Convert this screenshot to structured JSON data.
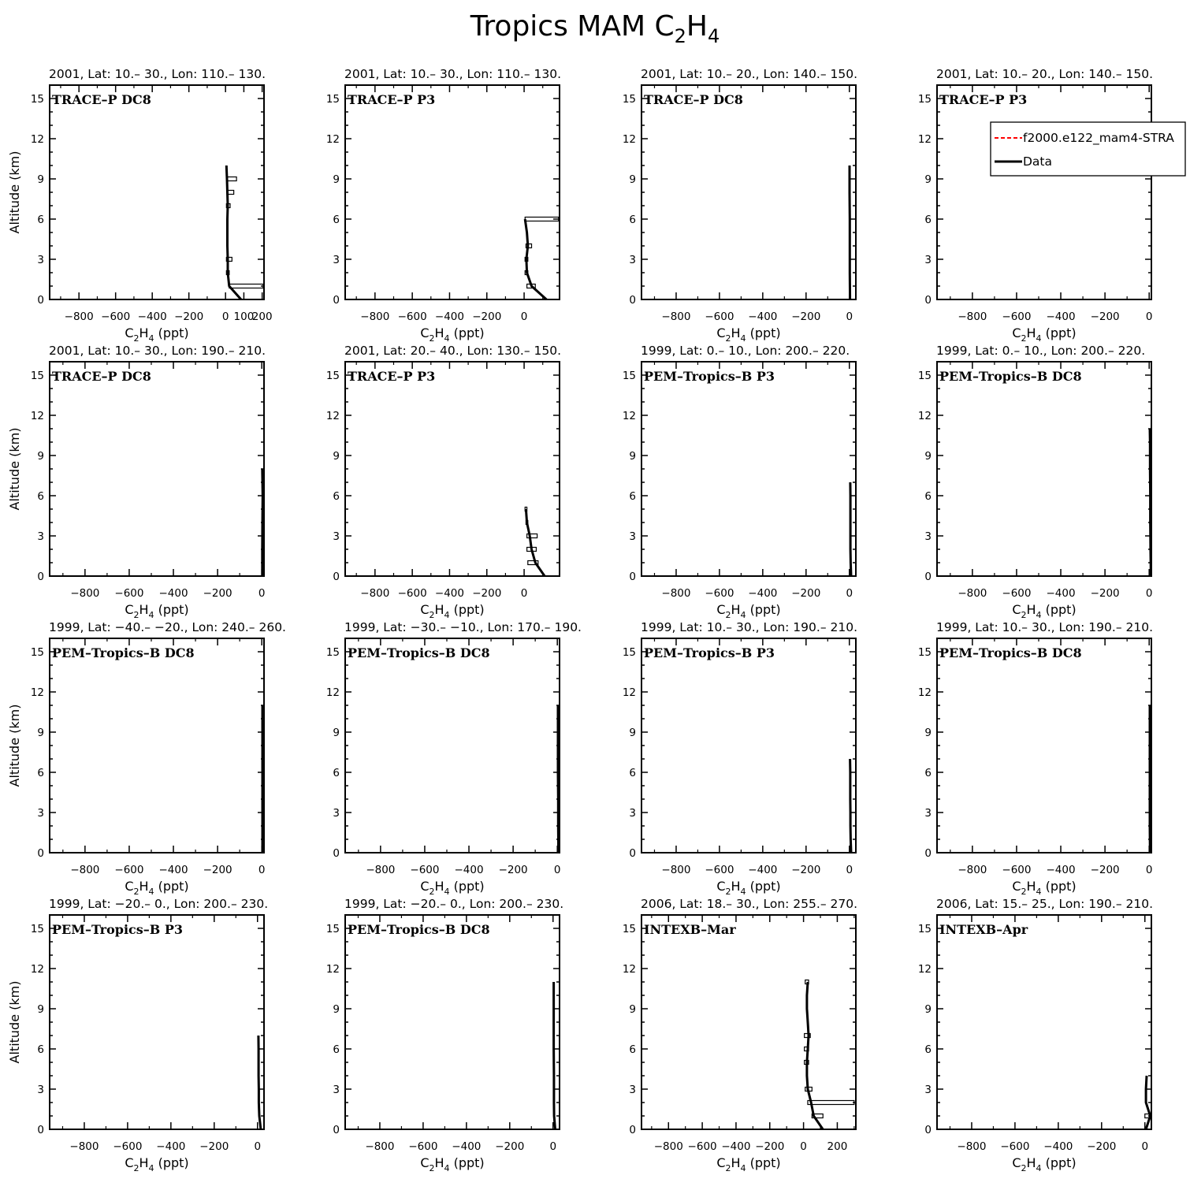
{
  "figure": {
    "title": "Tropics MAM C",
    "title_sub": "2",
    "title_mid": "H",
    "title_sub2": "4"
  },
  "axis_labels": {
    "ylabel": "Altitude (km)",
    "xlabel_prefix": "C",
    "xlabel_sub1": "2",
    "xlabel_mid": "H",
    "xlabel_sub2": "4",
    "xlabel_suffix": " (ppt)"
  },
  "legend": {
    "model_label": "f2000.e122_mam4-STRA",
    "model_color": "#ff0000",
    "data_label": "Data",
    "data_color": "#000000"
  },
  "chart_data": [
    {
      "type": "line",
      "header": "2001, Lat: 10.– 30., Lon: 110.– 130.",
      "campaign": "TRACE–P DC8",
      "xlim": [
        -960,
        210
      ],
      "ylim": [
        0,
        16
      ],
      "xticks": [
        -800,
        -600,
        -400,
        -200,
        0,
        100,
        200
      ],
      "xtick_labels": [
        "−800",
        "−600",
        "−400",
        "−200",
        "0",
        "100",
        "200"
      ],
      "profile": {
        "alt": [
          0,
          1,
          2,
          3,
          4,
          5,
          6,
          7,
          8,
          9,
          10
        ],
        "val": [
          85,
          20,
          12,
          12,
          10,
          10,
          10,
          12,
          10,
          8,
          5
        ]
      },
      "bars": [
        {
          "alt": 1,
          "lo": 20,
          "hi": 205
        },
        {
          "alt": 2,
          "lo": 5,
          "hi": 20
        },
        {
          "alt": 3,
          "lo": 5,
          "hi": 35
        },
        {
          "alt": 7,
          "lo": 5,
          "hi": 25
        },
        {
          "alt": 8,
          "lo": 10,
          "hi": 45
        },
        {
          "alt": 9,
          "lo": 10,
          "hi": 60
        }
      ]
    },
    {
      "type": "line",
      "header": "2001, Lat: 10.– 30., Lon: 110.– 130.",
      "campaign": "TRACE–P P3",
      "xlim": [
        -960,
        190
      ],
      "ylim": [
        0,
        16
      ],
      "xticks": [
        -800,
        -600,
        -400,
        -200,
        0
      ],
      "xtick_labels": [
        "−800",
        "−600",
        "−400",
        "−200",
        "0"
      ],
      "profile": {
        "alt": [
          0,
          1,
          2,
          3,
          4,
          5,
          6
        ],
        "val": [
          120,
          40,
          15,
          12,
          20,
          15,
          5
        ]
      },
      "bars": [
        {
          "alt": 1,
          "lo": 15,
          "hi": 60
        },
        {
          "alt": 2,
          "lo": 5,
          "hi": 20
        },
        {
          "alt": 3,
          "lo": 5,
          "hi": 20
        },
        {
          "alt": 4,
          "lo": 10,
          "hi": 40
        },
        {
          "alt": 6,
          "lo": 5,
          "hi": 185
        }
      ]
    },
    {
      "type": "line",
      "header": "2001, Lat: 10.– 20., Lon: 140.– 150.",
      "campaign": "TRACE–P DC8",
      "xlim": [
        -960,
        30
      ],
      "ylim": [
        0,
        16
      ],
      "xticks": [
        -800,
        -600,
        -400,
        -200,
        0
      ],
      "xtick_labels": [
        "−800",
        "−600",
        "−400",
        "−200",
        "0"
      ],
      "profile": {
        "alt": [
          0,
          2,
          4,
          6,
          8,
          10
        ],
        "val": [
          3,
          2,
          2,
          2,
          1,
          1
        ]
      },
      "bars": []
    },
    {
      "type": "line",
      "header": "2001, Lat: 10.– 20., Lon: 140.– 150.",
      "campaign": "TRACE–P P3",
      "xlim": [
        -960,
        10
      ],
      "ylim": [
        0,
        16
      ],
      "xticks": [
        -800,
        -600,
        -400,
        -200,
        0
      ],
      "xtick_labels": [
        "−800",
        "−600",
        "−400",
        "−200",
        "0"
      ],
      "profile": {
        "alt": [],
        "val": []
      },
      "bars": []
    },
    {
      "type": "line",
      "header": "2001, Lat: 10.– 30., Lon: 190.– 210.",
      "campaign": "TRACE–P DC8",
      "xlim": [
        -960,
        10
      ],
      "ylim": [
        0,
        16
      ],
      "xticks": [
        -800,
        -600,
        -400,
        -200,
        0
      ],
      "xtick_labels": [
        "−800",
        "−600",
        "−400",
        "−200",
        "0"
      ],
      "profile": {
        "alt": [
          0,
          2,
          4,
          6,
          8
        ],
        "val": [
          2,
          2,
          3,
          4,
          2
        ]
      },
      "bars": []
    },
    {
      "type": "line",
      "header": "2001, Lat: 20.– 40., Lon: 130.– 150.",
      "campaign": "TRACE–P P3",
      "xlim": [
        -960,
        190
      ],
      "ylim": [
        0,
        16
      ],
      "xticks": [
        -800,
        -600,
        -400,
        -200,
        0
      ],
      "xtick_labels": [
        "−800",
        "−600",
        "−400",
        "−200",
        "0"
      ],
      "profile": {
        "alt": [
          0,
          1,
          2,
          3,
          4,
          5
        ],
        "val": [
          110,
          60,
          40,
          30,
          15,
          10
        ]
      },
      "bars": [
        {
          "alt": 1,
          "lo": 20,
          "hi": 75
        },
        {
          "alt": 2,
          "lo": 15,
          "hi": 65
        },
        {
          "alt": 3,
          "lo": 15,
          "hi": 70
        },
        {
          "alt": 4,
          "lo": 10,
          "hi": 20
        },
        {
          "alt": 5,
          "lo": 5,
          "hi": 15
        }
      ]
    },
    {
      "type": "line",
      "header": "1999, Lat: 0.– 10., Lon: 200.– 220.",
      "campaign": "PEM–Tropics–B P3",
      "xlim": [
        -960,
        30
      ],
      "ylim": [
        0,
        16
      ],
      "xticks": [
        -800,
        -600,
        -400,
        -200,
        0
      ],
      "xtick_labels": [
        "−800",
        "−600",
        "−400",
        "−200",
        "0"
      ],
      "profile": {
        "alt": [
          0,
          1,
          2,
          3,
          4,
          5,
          6,
          7
        ],
        "val": [
          8,
          6,
          5,
          5,
          5,
          5,
          5,
          4
        ]
      },
      "bars": []
    },
    {
      "type": "line",
      "header": "1999, Lat: 0.– 10., Lon: 200.– 220.",
      "campaign": "PEM–Tropics–B DC8",
      "xlim": [
        -960,
        10
      ],
      "ylim": [
        0,
        16
      ],
      "xticks": [
        -800,
        -600,
        -400,
        -200,
        0
      ],
      "xtick_labels": [
        "−800",
        "−600",
        "−400",
        "−200",
        "0"
      ],
      "profile": {
        "alt": [
          0,
          2,
          4,
          6,
          8,
          10,
          11
        ],
        "val": [
          8,
          6,
          5,
          5,
          4,
          4,
          3
        ]
      },
      "bars": []
    },
    {
      "type": "line",
      "header": "1999, Lat: −40.– −20., Lon: 240.– 260.",
      "campaign": "PEM–Tropics–B DC8",
      "xlim": [
        -960,
        10
      ],
      "ylim": [
        0,
        16
      ],
      "xticks": [
        -800,
        -600,
        -400,
        -200,
        0
      ],
      "xtick_labels": [
        "−800",
        "−600",
        "−400",
        "−200",
        "0"
      ],
      "profile": {
        "alt": [
          0,
          2,
          4,
          6,
          8,
          10,
          11
        ],
        "val": [
          3,
          3,
          3,
          3,
          3,
          3,
          3
        ]
      },
      "bars": []
    },
    {
      "type": "line",
      "header": "1999, Lat: −30.– −10., Lon: 170.– 190.",
      "campaign": "PEM–Tropics–B DC8",
      "xlim": [
        -960,
        10
      ],
      "ylim": [
        0,
        16
      ],
      "xticks": [
        -800,
        -600,
        -400,
        -200,
        0
      ],
      "xtick_labels": [
        "−800",
        "−600",
        "−400",
        "−200",
        "0"
      ],
      "profile": {
        "alt": [
          0,
          2,
          4,
          6,
          8,
          10,
          11
        ],
        "val": [
          5,
          4,
          4,
          3,
          3,
          3,
          3
        ]
      },
      "bars": []
    },
    {
      "type": "line",
      "header": "1999, Lat: 10.– 30., Lon: 190.– 210.",
      "campaign": "PEM–Tropics–B P3",
      "xlim": [
        -960,
        30
      ],
      "ylim": [
        0,
        16
      ],
      "xticks": [
        -800,
        -600,
        -400,
        -200,
        0
      ],
      "xtick_labels": [
        "−800",
        "−600",
        "−400",
        "−200",
        "0"
      ],
      "profile": {
        "alt": [
          0,
          1,
          2,
          3,
          4,
          5,
          6,
          7
        ],
        "val": [
          8,
          6,
          5,
          5,
          4,
          4,
          4,
          3
        ]
      },
      "bars": []
    },
    {
      "type": "line",
      "header": "1999, Lat: 10.– 30., Lon: 190.– 210.",
      "campaign": "PEM–Tropics–B DC8",
      "xlim": [
        -960,
        10
      ],
      "ylim": [
        0,
        16
      ],
      "xticks": [
        -800,
        -600,
        -400,
        -200,
        0
      ],
      "xtick_labels": [
        "−800",
        "−600",
        "−400",
        "−200",
        "0"
      ],
      "profile": {
        "alt": [
          0,
          2,
          4,
          6,
          8,
          10,
          11
        ],
        "val": [
          4,
          3,
          3,
          3,
          3,
          3,
          3
        ]
      },
      "bars": []
    },
    {
      "type": "line",
      "header": "1999, Lat: −20.– 0., Lon: 200.– 230.",
      "campaign": "PEM–Tropics–B P3",
      "xlim": [
        -960,
        30
      ],
      "ylim": [
        0,
        16
      ],
      "xticks": [
        -800,
        -600,
        -400,
        -200,
        0
      ],
      "xtick_labels": [
        "−800",
        "−600",
        "−400",
        "−200",
        "0"
      ],
      "profile": {
        "alt": [
          0,
          1,
          2,
          3,
          4,
          5,
          6,
          7
        ],
        "val": [
          15,
          8,
          6,
          6,
          5,
          5,
          5,
          4
        ]
      },
      "bars": []
    },
    {
      "type": "line",
      "header": "1999, Lat: −20.– 0., Lon: 200.– 230.",
      "campaign": "PEM–Tropics–B DC8",
      "xlim": [
        -960,
        30
      ],
      "ylim": [
        0,
        16
      ],
      "xticks": [
        -800,
        -600,
        -400,
        -200,
        0
      ],
      "xtick_labels": [
        "−800",
        "−600",
        "−400",
        "−200",
        "0"
      ],
      "profile": {
        "alt": [
          0,
          1,
          2,
          4,
          6,
          8,
          10,
          11
        ],
        "val": [
          10,
          5,
          4,
          4,
          3,
          3,
          3,
          3
        ]
      },
      "bars": []
    },
    {
      "type": "line",
      "header": "2006, Lat: 18.– 30., Lon: 255.– 270.",
      "campaign": "INTEXB–Mar",
      "xlim": [
        -960,
        310
      ],
      "ylim": [
        0,
        16
      ],
      "xticks": [
        -800,
        -600,
        -400,
        -200,
        0,
        200
      ],
      "xtick_labels": [
        "−800",
        "−600",
        "−400",
        "−200",
        "0",
        "200"
      ],
      "profile": {
        "alt": [
          0,
          1,
          2,
          3,
          4,
          5,
          6,
          7,
          8,
          9,
          10,
          11
        ],
        "val": [
          115,
          60,
          45,
          25,
          20,
          20,
          25,
          30,
          25,
          20,
          20,
          25
        ]
      },
      "bars": [
        {
          "alt": 1,
          "lo": 50,
          "hi": 115
        },
        {
          "alt": 2,
          "lo": 25,
          "hi": 300
        },
        {
          "alt": 3,
          "lo": 10,
          "hi": 50
        },
        {
          "alt": 5,
          "lo": 5,
          "hi": 30
        },
        {
          "alt": 6,
          "lo": 5,
          "hi": 30
        },
        {
          "alt": 7,
          "lo": 5,
          "hi": 40
        },
        {
          "alt": 11,
          "lo": 10,
          "hi": 30
        }
      ]
    },
    {
      "type": "line",
      "header": "2006, Lat: 15.– 25., Lon: 190.– 210.",
      "campaign": "INTEXB–Apr",
      "xlim": [
        -960,
        30
      ],
      "ylim": [
        0,
        16
      ],
      "xticks": [
        -800,
        -600,
        -400,
        -200,
        0
      ],
      "xtick_labels": [
        "−800",
        "−600",
        "−400",
        "−200",
        "0"
      ],
      "profile": {
        "alt": [
          0,
          1,
          2,
          3,
          4
        ],
        "val": [
          5,
          25,
          5,
          5,
          8
        ]
      },
      "bars": [
        {
          "alt": 1,
          "lo": 0,
          "hi": 35
        }
      ]
    }
  ]
}
